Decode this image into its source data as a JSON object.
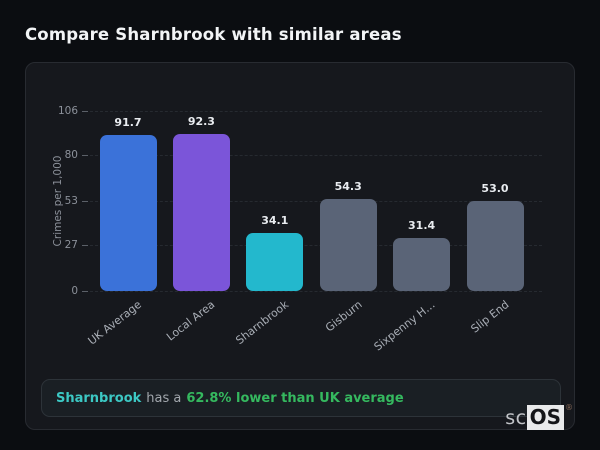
{
  "page": {
    "title": "Compare Sharnbrook with similar areas"
  },
  "chart_data": {
    "type": "bar",
    "categories": [
      "UK Average",
      "Local Area",
      "Sharnbrook",
      "Gisburn",
      "Sixpenny H…",
      "Slip End"
    ],
    "values": [
      91.7,
      92.3,
      34.1,
      54.3,
      31.4,
      53.0
    ],
    "value_labels": [
      "91.7",
      "92.3",
      "34.1",
      "54.3",
      "31.4",
      "53.0"
    ],
    "bar_colors": [
      "#3b72d9",
      "#7b55d9",
      "#23b8cd",
      "#5a6477",
      "#5a6477",
      "#5a6477"
    ],
    "title": "",
    "xlabel": "",
    "ylabel": "Crimes per 1,000",
    "yticks": [
      0,
      27,
      53,
      80,
      106
    ],
    "ylim": [
      0,
      106
    ],
    "grid": "dashed-horizontal",
    "legend": "none"
  },
  "note": {
    "subject": "Sharnbrook",
    "connector": "has a",
    "highlight": "62.8% lower than UK average"
  },
  "logo": {
    "prefix": "sc",
    "suffix": "OS",
    "registered": "®"
  },
  "colors": {
    "background": "#0b0d11",
    "card_background": "#16181d",
    "card_border": "#282b31",
    "grid": "#262a30",
    "axis_text": "#8c919a",
    "value_text": "#e9ecf0",
    "note_subject": "#3cc8c4",
    "note_highlight": "#35b95f",
    "bar_blue": "#3b72d9",
    "bar_purple": "#7b55d9",
    "bar_cyan": "#23b8cd",
    "bar_gray": "#5a6477"
  }
}
